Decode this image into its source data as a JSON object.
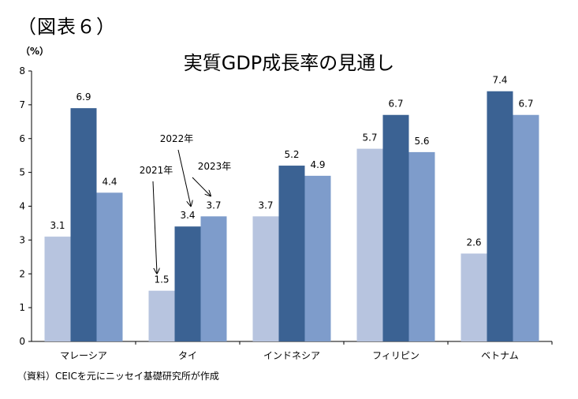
{
  "figure_label": "（図表６）",
  "source_note": "（資料）CEICを元にニッセイ基礎研究所が作成",
  "chart_data": {
    "type": "bar",
    "title": "実質GDP成長率の見通し",
    "ylabel": "（%）",
    "xlabel": "",
    "ylim": [
      0,
      8
    ],
    "yticks": [
      0,
      1,
      2,
      3,
      4,
      5,
      6,
      7,
      8
    ],
    "grid": false,
    "categories": [
      "マレーシア",
      "タイ",
      "インドネシア",
      "フィリピン",
      "ベトナム"
    ],
    "series": [
      {
        "name": "2021年",
        "color": "#b7c4df",
        "values": [
          3.1,
          1.5,
          3.7,
          5.7,
          2.6
        ]
      },
      {
        "name": "2022年",
        "color": "#3b6293",
        "values": [
          6.9,
          3.4,
          5.2,
          6.7,
          7.4
        ]
      },
      {
        "name": "2023年",
        "color": "#7e9ccb",
        "values": [
          4.4,
          3.7,
          4.9,
          5.6,
          6.7
        ]
      }
    ],
    "data_labels": [
      [
        "3.1",
        "1.5",
        "3.7",
        "5.7",
        "2.6"
      ],
      [
        "6.9",
        "3.4",
        "5.2",
        "6.7",
        "7.4"
      ],
      [
        "4.4",
        "3.7",
        "4.9",
        "5.6",
        "6.7"
      ]
    ],
    "annotations": [
      "2021年",
      "2022年",
      "2023年"
    ]
  }
}
